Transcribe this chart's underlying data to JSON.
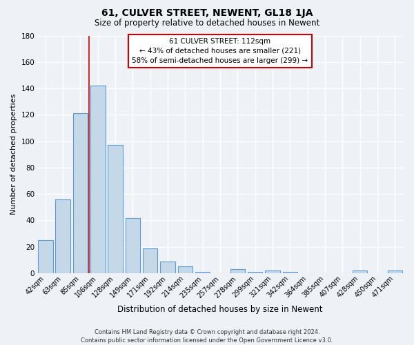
{
  "title": "61, CULVER STREET, NEWENT, GL18 1JA",
  "subtitle": "Size of property relative to detached houses in Newent",
  "xlabel": "Distribution of detached houses by size in Newent",
  "ylabel": "Number of detached properties",
  "bar_labels": [
    "42sqm",
    "63sqm",
    "85sqm",
    "106sqm",
    "128sqm",
    "149sqm",
    "171sqm",
    "192sqm",
    "214sqm",
    "235sqm",
    "257sqm",
    "278sqm",
    "299sqm",
    "321sqm",
    "342sqm",
    "364sqm",
    "385sqm",
    "407sqm",
    "428sqm",
    "450sqm",
    "471sqm"
  ],
  "bar_values": [
    25,
    56,
    121,
    142,
    97,
    42,
    19,
    9,
    5,
    1,
    0,
    3,
    1,
    2,
    1,
    0,
    0,
    0,
    2,
    0,
    2
  ],
  "bar_color": "#c5d8e8",
  "bar_edgecolor": "#5b9bd5",
  "ylim": [
    0,
    180
  ],
  "yticks": [
    0,
    20,
    40,
    60,
    80,
    100,
    120,
    140,
    160,
    180
  ],
  "vline_x": 2.5,
  "vline_color": "#cc0000",
  "annotation_title": "61 CULVER STREET: 112sqm",
  "annotation_line1": "← 43% of detached houses are smaller (221)",
  "annotation_line2": "58% of semi-detached houses are larger (299) →",
  "annotation_box_color": "#ffffff",
  "annotation_box_edgecolor": "#cc0000",
  "footer1": "Contains HM Land Registry data © Crown copyright and database right 2024.",
  "footer2": "Contains public sector information licensed under the Open Government Licence v3.0.",
  "background_color": "#eef2f7",
  "grid_color": "#ffffff",
  "title_fontsize": 10,
  "subtitle_fontsize": 8.5,
  "xlabel_fontsize": 8.5,
  "ylabel_fontsize": 8,
  "tick_fontsize": 7,
  "annotation_fontsize": 7.5,
  "footer_fontsize": 6
}
